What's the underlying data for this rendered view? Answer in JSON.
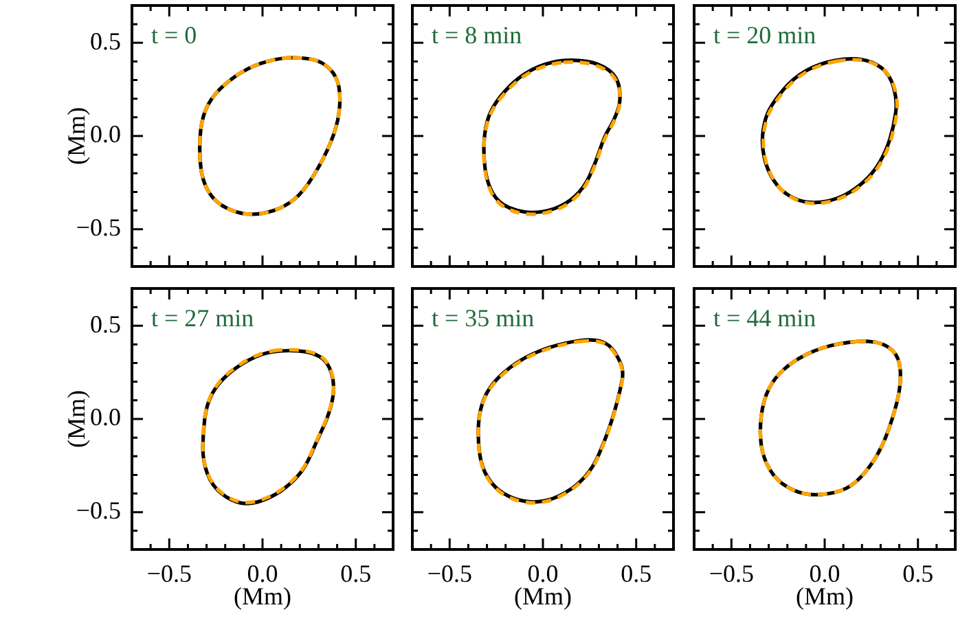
{
  "chart_data": [
    {
      "type": "line",
      "title": "t = 0",
      "ylabel": "(Mm)",
      "tick_labels": "y",
      "xlim": [
        -0.7,
        0.7
      ],
      "ylim": [
        -0.7,
        0.7
      ],
      "xticks": [
        {
          "value": -0.6,
          "label": null
        },
        {
          "value": -0.5,
          "label": null
        },
        {
          "value": -0.4,
          "label": null
        },
        {
          "value": -0.3,
          "label": null
        },
        {
          "value": -0.2,
          "label": null
        },
        {
          "value": -0.1,
          "label": null
        },
        {
          "value": 0,
          "label": null
        },
        {
          "value": 0.1,
          "label": null
        },
        {
          "value": 0.2,
          "label": null
        },
        {
          "value": 0.3,
          "label": null
        },
        {
          "value": 0.4,
          "label": null
        },
        {
          "value": 0.5,
          "label": null
        },
        {
          "value": 0.6,
          "label": null
        }
      ],
      "yticks": [
        {
          "value": -0.6,
          "label": null
        },
        {
          "value": -0.5,
          "label": "−0.5"
        },
        {
          "value": -0.4,
          "label": null
        },
        {
          "value": -0.3,
          "label": null
        },
        {
          "value": -0.2,
          "label": null
        },
        {
          "value": -0.1,
          "label": null
        },
        {
          "value": 0,
          "label": "0.0"
        },
        {
          "value": 0.1,
          "label": null
        },
        {
          "value": 0.2,
          "label": null
        },
        {
          "value": 0.3,
          "label": null
        },
        {
          "value": 0.4,
          "label": null
        },
        {
          "value": 0.5,
          "label": "0.5"
        },
        {
          "value": 0.6,
          "label": null
        }
      ]
    },
    {
      "type": "line",
      "title": "t = 8 min",
      "tick_labels": false,
      "xlim": [
        -0.7,
        0.7
      ],
      "ylim": [
        -0.7,
        0.7
      ],
      "xticks": [
        {
          "value": -0.6,
          "label": null
        },
        {
          "value": -0.5,
          "label": null
        },
        {
          "value": -0.4,
          "label": null
        },
        {
          "value": -0.3,
          "label": null
        },
        {
          "value": -0.2,
          "label": null
        },
        {
          "value": -0.1,
          "label": null
        },
        {
          "value": 0,
          "label": null
        },
        {
          "value": 0.1,
          "label": null
        },
        {
          "value": 0.2,
          "label": null
        },
        {
          "value": 0.3,
          "label": null
        },
        {
          "value": 0.4,
          "label": null
        },
        {
          "value": 0.5,
          "label": null
        },
        {
          "value": 0.6,
          "label": null
        }
      ],
      "yticks": [
        {
          "value": -0.6,
          "label": null
        },
        {
          "value": -0.5,
          "label": null
        },
        {
          "value": -0.4,
          "label": null
        },
        {
          "value": -0.3,
          "label": null
        },
        {
          "value": -0.2,
          "label": null
        },
        {
          "value": -0.1,
          "label": null
        },
        {
          "value": 0,
          "label": null
        },
        {
          "value": 0.1,
          "label": null
        },
        {
          "value": 0.2,
          "label": null
        },
        {
          "value": 0.3,
          "label": null
        },
        {
          "value": 0.4,
          "label": null
        },
        {
          "value": 0.5,
          "label": null
        },
        {
          "value": 0.6,
          "label": null
        }
      ]
    },
    {
      "type": "line",
      "title": "t = 20 min",
      "tick_labels": false,
      "xlim": [
        -0.7,
        0.7
      ],
      "ylim": [
        -0.7,
        0.7
      ],
      "xticks": [
        {
          "value": -0.6,
          "label": null
        },
        {
          "value": -0.5,
          "label": null
        },
        {
          "value": -0.4,
          "label": null
        },
        {
          "value": -0.3,
          "label": null
        },
        {
          "value": -0.2,
          "label": null
        },
        {
          "value": -0.1,
          "label": null
        },
        {
          "value": 0,
          "label": null
        },
        {
          "value": 0.1,
          "label": null
        },
        {
          "value": 0.2,
          "label": null
        },
        {
          "value": 0.3,
          "label": null
        },
        {
          "value": 0.4,
          "label": null
        },
        {
          "value": 0.5,
          "label": null
        },
        {
          "value": 0.6,
          "label": null
        }
      ],
      "yticks": [
        {
          "value": -0.6,
          "label": null
        },
        {
          "value": -0.5,
          "label": null
        },
        {
          "value": -0.4,
          "label": null
        },
        {
          "value": -0.3,
          "label": null
        },
        {
          "value": -0.2,
          "label": null
        },
        {
          "value": -0.1,
          "label": null
        },
        {
          "value": 0,
          "label": null
        },
        {
          "value": 0.1,
          "label": null
        },
        {
          "value": 0.2,
          "label": null
        },
        {
          "value": 0.3,
          "label": null
        },
        {
          "value": 0.4,
          "label": null
        },
        {
          "value": 0.5,
          "label": null
        },
        {
          "value": 0.6,
          "label": null
        }
      ]
    },
    {
      "type": "line",
      "title": "t = 27 min",
      "xlabel": "(Mm)",
      "ylabel": "(Mm)",
      "xlim": [
        -0.7,
        0.7
      ],
      "ylim": [
        -0.7,
        0.7
      ],
      "xticks": [
        {
          "value": -0.6,
          "label": null
        },
        {
          "value": -0.5,
          "label": "−0.5"
        },
        {
          "value": -0.4,
          "label": null
        },
        {
          "value": -0.3,
          "label": null
        },
        {
          "value": -0.2,
          "label": null
        },
        {
          "value": -0.1,
          "label": null
        },
        {
          "value": 0,
          "label": "0.0"
        },
        {
          "value": 0.1,
          "label": null
        },
        {
          "value": 0.2,
          "label": null
        },
        {
          "value": 0.3,
          "label": null
        },
        {
          "value": 0.4,
          "label": null
        },
        {
          "value": 0.5,
          "label": "0.5"
        },
        {
          "value": 0.6,
          "label": null
        }
      ],
      "yticks": [
        {
          "value": -0.6,
          "label": null
        },
        {
          "value": -0.5,
          "label": "−0.5"
        },
        {
          "value": -0.4,
          "label": null
        },
        {
          "value": -0.3,
          "label": null
        },
        {
          "value": -0.2,
          "label": null
        },
        {
          "value": -0.1,
          "label": null
        },
        {
          "value": 0,
          "label": "0.0"
        },
        {
          "value": 0.1,
          "label": null
        },
        {
          "value": 0.2,
          "label": null
        },
        {
          "value": 0.3,
          "label": null
        },
        {
          "value": 0.4,
          "label": null
        },
        {
          "value": 0.5,
          "label": "0.5"
        },
        {
          "value": 0.6,
          "label": null
        }
      ]
    },
    {
      "type": "line",
      "title": "t = 35 min",
      "xlabel": "(Mm)",
      "tick_labels": "x",
      "xlim": [
        -0.7,
        0.7
      ],
      "ylim": [
        -0.7,
        0.7
      ],
      "xticks": [
        {
          "value": -0.6,
          "label": null
        },
        {
          "value": -0.5,
          "label": "−0.5"
        },
        {
          "value": -0.4,
          "label": null
        },
        {
          "value": -0.3,
          "label": null
        },
        {
          "value": -0.2,
          "label": null
        },
        {
          "value": -0.1,
          "label": null
        },
        {
          "value": 0,
          "label": "0.0"
        },
        {
          "value": 0.1,
          "label": null
        },
        {
          "value": 0.2,
          "label": null
        },
        {
          "value": 0.3,
          "label": null
        },
        {
          "value": 0.4,
          "label": null
        },
        {
          "value": 0.5,
          "label": "0.5"
        },
        {
          "value": 0.6,
          "label": null
        }
      ],
      "yticks": [
        {
          "value": -0.6,
          "label": null
        },
        {
          "value": -0.5,
          "label": null
        },
        {
          "value": -0.4,
          "label": null
        },
        {
          "value": -0.3,
          "label": null
        },
        {
          "value": -0.2,
          "label": null
        },
        {
          "value": -0.1,
          "label": null
        },
        {
          "value": 0,
          "label": null
        },
        {
          "value": 0.1,
          "label": null
        },
        {
          "value": 0.2,
          "label": null
        },
        {
          "value": 0.3,
          "label": null
        },
        {
          "value": 0.4,
          "label": null
        },
        {
          "value": 0.5,
          "label": null
        },
        {
          "value": 0.6,
          "label": null
        }
      ]
    },
    {
      "type": "line",
      "title": "t = 44 min",
      "xlabel": "(Mm)",
      "tick_labels": "x",
      "xlim": [
        -0.7,
        0.7
      ],
      "ylim": [
        -0.7,
        0.7
      ],
      "xticks": [
        {
          "value": -0.6,
          "label": null
        },
        {
          "value": -0.5,
          "label": "−0.5"
        },
        {
          "value": -0.4,
          "label": null
        },
        {
          "value": -0.3,
          "label": null
        },
        {
          "value": -0.2,
          "label": null
        },
        {
          "value": -0.1,
          "label": null
        },
        {
          "value": 0,
          "label": "0.0"
        },
        {
          "value": 0.1,
          "label": null
        },
        {
          "value": 0.2,
          "label": null
        },
        {
          "value": 0.3,
          "label": null
        },
        {
          "value": 0.4,
          "label": null
        },
        {
          "value": 0.5,
          "label": "0.5"
        },
        {
          "value": 0.6,
          "label": null
        }
      ],
      "yticks": [
        {
          "value": -0.6,
          "label": null
        },
        {
          "value": -0.5,
          "label": null
        },
        {
          "value": -0.4,
          "label": null
        },
        {
          "value": -0.3,
          "label": null
        },
        {
          "value": -0.2,
          "label": null
        },
        {
          "value": -0.1,
          "label": null
        },
        {
          "value": 0,
          "label": null
        },
        {
          "value": 0.1,
          "label": null
        },
        {
          "value": 0.2,
          "label": null
        },
        {
          "value": 0.3,
          "label": null
        },
        {
          "value": 0.4,
          "label": null
        },
        {
          "value": 0.5,
          "label": null
        },
        {
          "value": 0.6,
          "label": null
        }
      ]
    }
  ]
}
